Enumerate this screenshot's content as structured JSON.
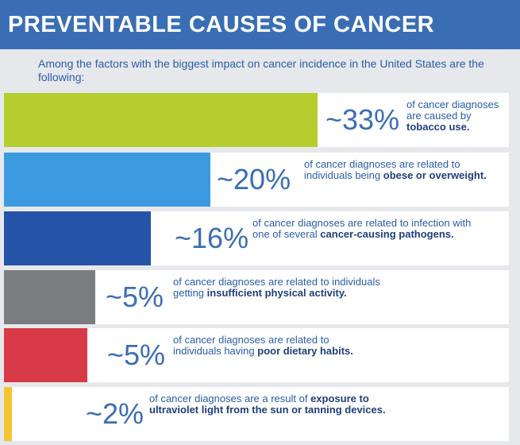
{
  "header": {
    "title": "PREVENTABLE CAUSES OF CANCER"
  },
  "intro": "Among the factors with the biggest impact on cancer incidence in the United States are the following:",
  "items": [
    {
      "percent": "~33%",
      "text": "of cancer diagnoses are caused by",
      "bold": "tobacco use."
    },
    {
      "percent": "~20%",
      "text": "of cancer diagnoses are related to individuals being",
      "bold": "obese or overweight."
    },
    {
      "percent": "~16%",
      "text": "of cancer diagnoses are related to infection with one of several",
      "bold": "cancer-causing pathogens."
    },
    {
      "percent": "~5%",
      "text": "of cancer diagnoses are related to individuals getting",
      "bold": "insufficient physical activity."
    },
    {
      "percent": "~5%",
      "text": "of cancer diagnoses are related to individuals having",
      "bold": "poor dietary habits."
    },
    {
      "percent": "~2%",
      "text": "of cancer diagnoses are a result of",
      "bold": "exposure to ultraviolet light from the sun or tanning devices."
    }
  ]
}
